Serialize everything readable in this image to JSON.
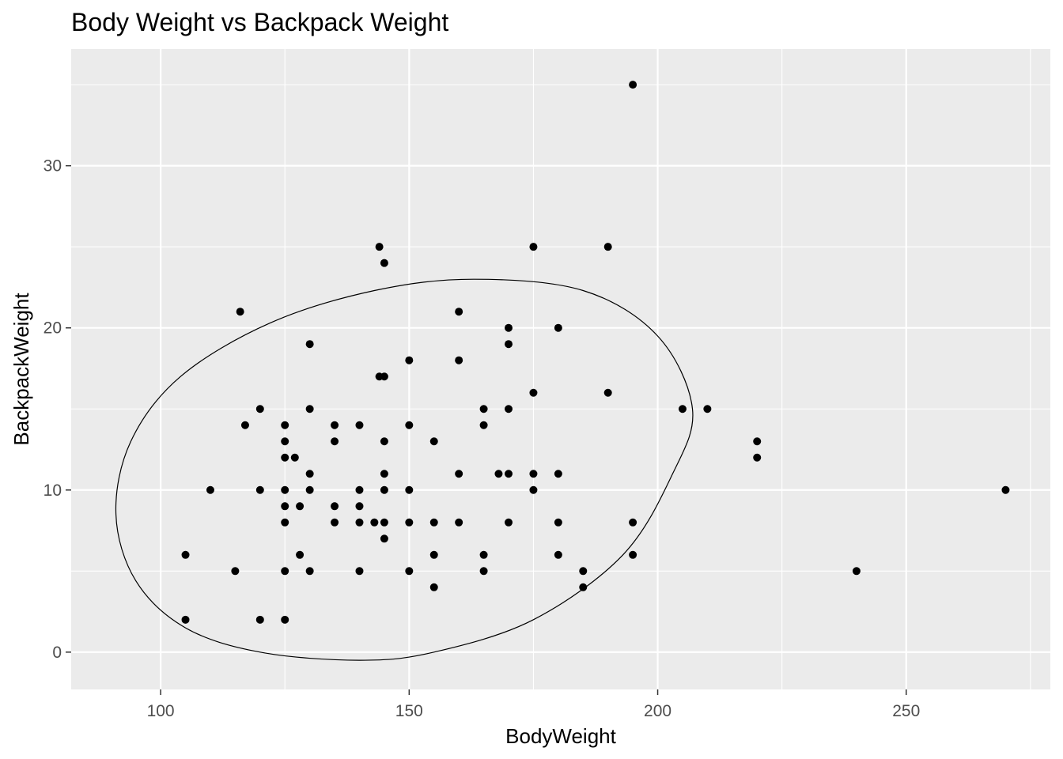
{
  "chart_data": {
    "type": "scatter",
    "title": "Body Weight vs Backpack Weight",
    "xlabel": "BodyWeight",
    "ylabel": "BackpackWeight",
    "xlim": [
      82,
      279
    ],
    "ylim": [
      -2.3,
      37.2
    ],
    "x_ticks": [
      100,
      150,
      200,
      250
    ],
    "x_tick_labels": [
      "100",
      "150",
      "200",
      "250"
    ],
    "y_ticks": [
      0,
      10,
      20,
      30
    ],
    "y_tick_labels": [
      "0",
      "10",
      "20",
      "30"
    ],
    "grid": true,
    "panel_background": "#EBEBEB",
    "grid_color": "#FFFFFF",
    "point_color": "#000000",
    "points": [
      [
        195,
        35
      ],
      [
        144,
        25
      ],
      [
        175,
        25
      ],
      [
        190,
        25
      ],
      [
        145,
        24
      ],
      [
        116,
        21
      ],
      [
        160,
        21
      ],
      [
        170,
        20
      ],
      [
        180,
        20
      ],
      [
        130,
        19
      ],
      [
        170,
        19
      ],
      [
        150,
        18
      ],
      [
        160,
        18
      ],
      [
        144,
        17
      ],
      [
        145,
        17
      ],
      [
        175,
        16
      ],
      [
        190,
        16
      ],
      [
        120,
        15
      ],
      [
        130,
        15
      ],
      [
        165,
        15
      ],
      [
        170,
        15
      ],
      [
        205,
        15
      ],
      [
        210,
        15
      ],
      [
        117,
        14
      ],
      [
        125,
        14
      ],
      [
        135,
        14
      ],
      [
        140,
        14
      ],
      [
        150,
        14
      ],
      [
        165,
        14
      ],
      [
        125,
        13
      ],
      [
        135,
        13
      ],
      [
        145,
        13
      ],
      [
        155,
        13
      ],
      [
        220,
        13
      ],
      [
        125,
        12
      ],
      [
        127,
        12
      ],
      [
        220,
        12
      ],
      [
        130,
        11
      ],
      [
        145,
        11
      ],
      [
        160,
        11
      ],
      [
        168,
        11
      ],
      [
        170,
        11
      ],
      [
        175,
        11
      ],
      [
        180,
        11
      ],
      [
        110,
        10
      ],
      [
        120,
        10
      ],
      [
        125,
        10
      ],
      [
        130,
        10
      ],
      [
        140,
        10
      ],
      [
        145,
        10
      ],
      [
        150,
        10
      ],
      [
        175,
        10
      ],
      [
        270,
        10
      ],
      [
        125,
        9
      ],
      [
        128,
        9
      ],
      [
        135,
        9
      ],
      [
        140,
        9
      ],
      [
        125,
        8
      ],
      [
        135,
        8
      ],
      [
        140,
        8
      ],
      [
        143,
        8
      ],
      [
        145,
        8
      ],
      [
        150,
        8
      ],
      [
        155,
        8
      ],
      [
        160,
        8
      ],
      [
        170,
        8
      ],
      [
        180,
        8
      ],
      [
        195,
        8
      ],
      [
        145,
        7
      ],
      [
        105,
        6
      ],
      [
        128,
        6
      ],
      [
        155,
        6
      ],
      [
        165,
        6
      ],
      [
        180,
        6
      ],
      [
        195,
        6
      ],
      [
        115,
        5
      ],
      [
        125,
        5
      ],
      [
        130,
        5
      ],
      [
        140,
        5
      ],
      [
        150,
        5
      ],
      [
        165,
        5
      ],
      [
        185,
        5
      ],
      [
        240,
        5
      ],
      [
        155,
        4
      ],
      [
        185,
        4
      ],
      [
        105,
        2
      ],
      [
        120,
        2
      ],
      [
        125,
        2
      ]
    ],
    "ellipse": {
      "type": "normal-confidence-ellipse",
      "color": "#000000",
      "path": [
        [
          91,
          8.5
        ],
        [
          95,
          4.4
        ],
        [
          105,
          1.5
        ],
        [
          120,
          0.0
        ],
        [
          140,
          -0.5
        ],
        [
          155,
          0.0
        ],
        [
          175,
          2.0
        ],
        [
          193,
          6.0
        ],
        [
          203,
          11.0
        ],
        [
          207,
          15.0
        ],
        [
          200,
          19.5
        ],
        [
          185,
          22.3
        ],
        [
          163,
          23.0
        ],
        [
          143,
          22.3
        ],
        [
          122,
          20.3
        ],
        [
          104,
          17.0
        ],
        [
          94,
          13.0
        ],
        [
          91,
          8.5
        ]
      ]
    }
  }
}
